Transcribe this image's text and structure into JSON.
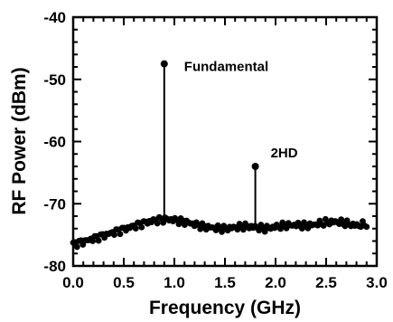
{
  "chart_data": {
    "type": "line",
    "title": "",
    "xlabel": "Frequency (GHz)",
    "ylabel": "RF Power (dBm)",
    "xlim": [
      0.0,
      3.0
    ],
    "ylim": [
      -80,
      -40
    ],
    "x_ticks": [
      "0.0",
      "0.5",
      "1.0",
      "1.5",
      "2.0",
      "2.5",
      "3.0"
    ],
    "y_ticks": [
      "-80",
      "-70",
      "-60",
      "-50",
      "-40"
    ],
    "grid": false,
    "series": [
      {
        "name": "",
        "type": "noise-floor",
        "x": [
          0.0,
          0.1,
          0.2,
          0.3,
          0.4,
          0.5,
          0.6,
          0.7,
          0.8,
          0.9,
          1.0,
          1.1,
          1.2,
          1.3,
          1.4,
          1.5,
          1.6,
          1.7,
          1.8,
          1.9,
          2.0,
          2.1,
          2.2,
          2.3,
          2.4,
          2.5,
          2.6,
          2.7,
          2.8,
          2.9
        ],
        "y": [
          -76.5,
          -76.1,
          -75.6,
          -75.1,
          -74.6,
          -74.1,
          -73.6,
          -73.1,
          -72.7,
          -72.5,
          -72.6,
          -72.9,
          -73.3,
          -73.7,
          -73.9,
          -74.0,
          -73.8,
          -73.6,
          -73.8,
          -74.0,
          -73.7,
          -73.5,
          -73.4,
          -73.6,
          -73.3,
          -73.0,
          -72.9,
          -73.2,
          -73.5,
          -73.3
        ]
      }
    ],
    "peaks": [
      {
        "label": "Fundamental",
        "x": 0.9,
        "y": -47.5
      },
      {
        "label": "2HD",
        "x": 1.8,
        "y": -64.0
      }
    ]
  }
}
